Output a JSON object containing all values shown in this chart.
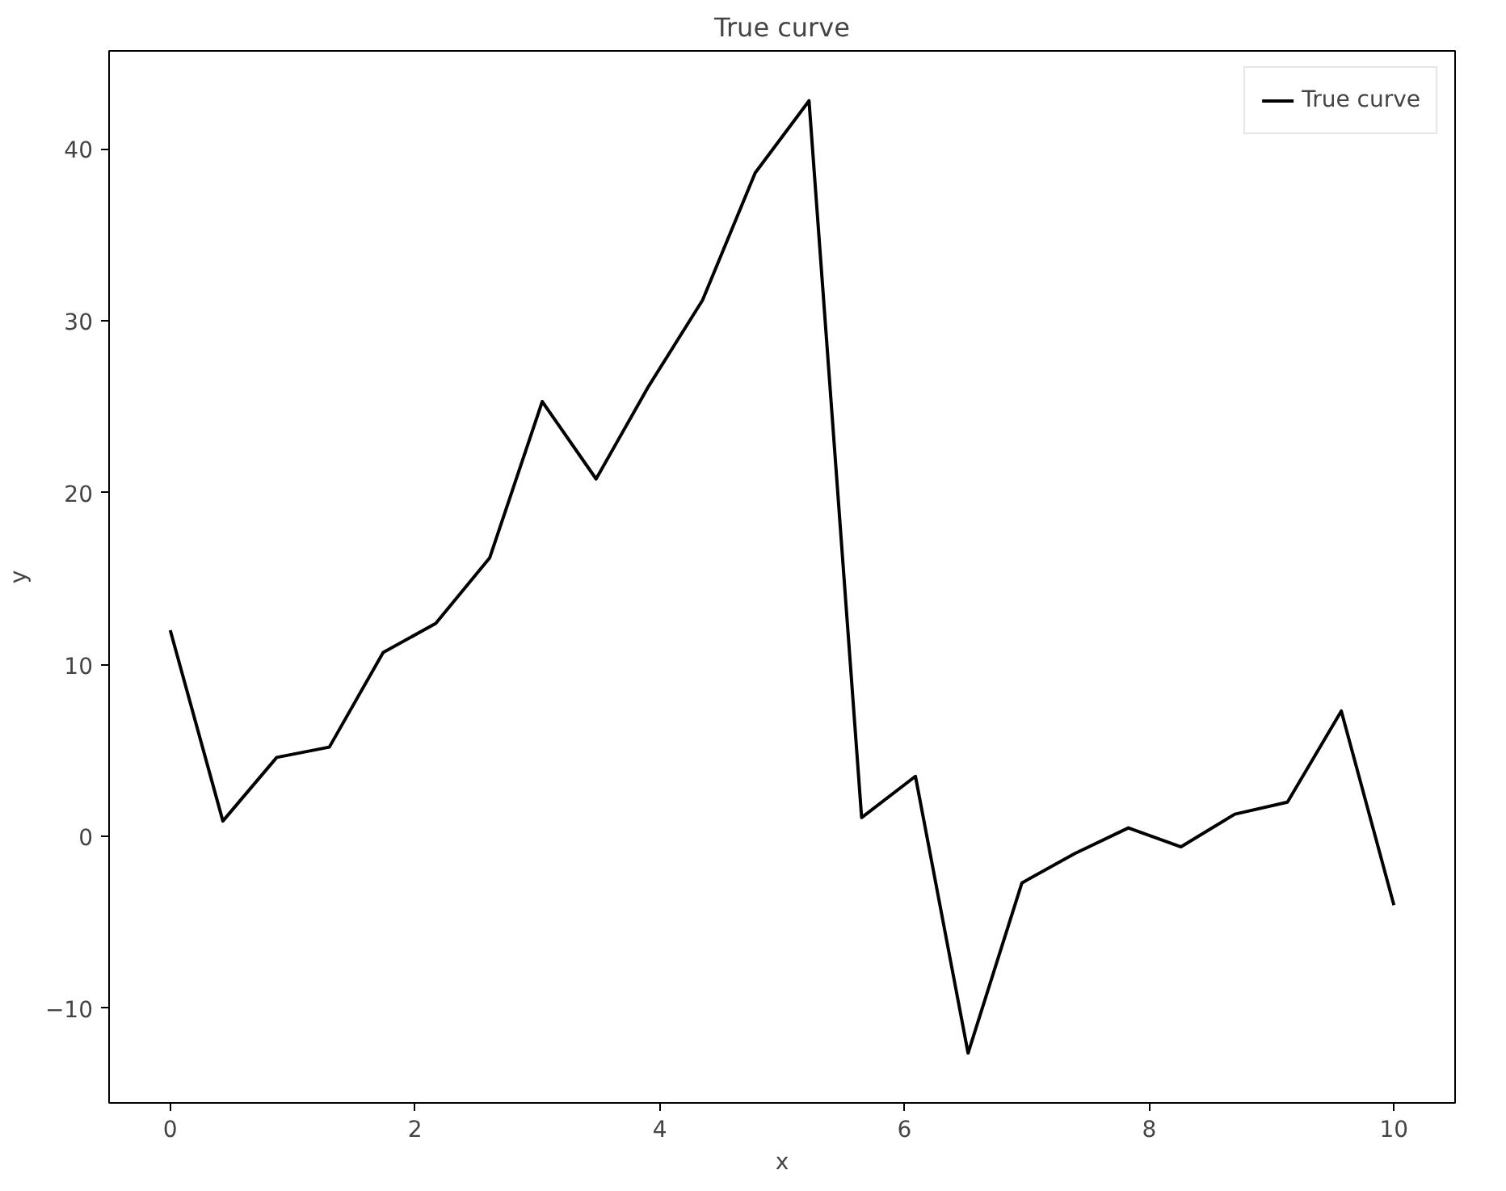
{
  "chart_data": {
    "type": "line",
    "title": "True curve",
    "xlabel": "x",
    "ylabel": "y",
    "x": [
      0,
      0.43,
      0.87,
      1.3,
      1.74,
      2.17,
      2.61,
      3.04,
      3.48,
      3.91,
      4.35,
      4.78,
      5.22,
      5.65,
      6.09,
      6.52,
      6.96,
      7.39,
      7.83,
      8.26,
      8.7,
      9.13,
      9.57,
      10
    ],
    "series": [
      {
        "name": "True curve",
        "color": "#000000",
        "values": [
          12.0,
          0.9,
          4.6,
          5.2,
          10.7,
          12.4,
          16.2,
          25.3,
          20.8,
          26.2,
          31.2,
          38.6,
          42.8,
          1.1,
          3.5,
          -12.6,
          -2.7,
          -1.0,
          0.5,
          -0.6,
          1.3,
          2.0,
          7.3,
          -4.0
        ]
      }
    ],
    "xlim": [
      -0.5,
      10.5
    ],
    "ylim": [
      -15.5,
      45.7
    ],
    "xticks": [
      0,
      2,
      4,
      6,
      8,
      10
    ],
    "yticks": [
      {
        "value": -10,
        "label": "−10"
      },
      0,
      10,
      20,
      30,
      40
    ],
    "legend": "top right",
    "grid": false,
    "line_style": "solid",
    "marker": "none"
  }
}
